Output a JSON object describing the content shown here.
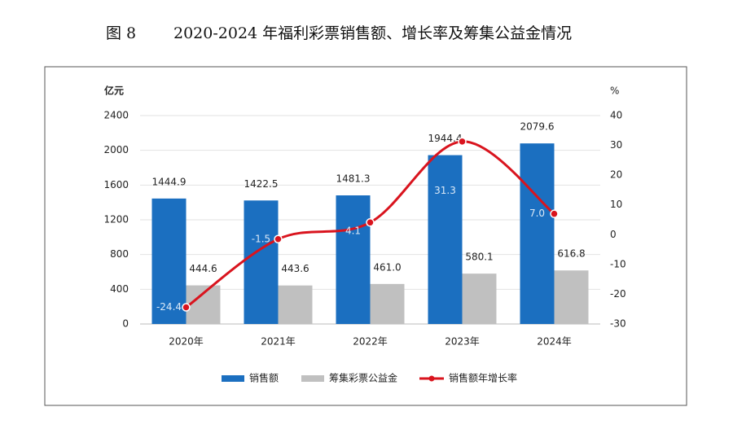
{
  "chart_data": {
    "type": "bar",
    "figure_label": "图 8",
    "title": "2020-2024 年福利彩票销售额、增长率及筹集公益金情况",
    "y_label": "亿元",
    "y2_label": "%",
    "categories": [
      "2020年",
      "2021年",
      "2022年",
      "2023年",
      "2024年"
    ],
    "series": [
      {
        "name": "销售额",
        "type": "bar",
        "color": "#1b6fc0",
        "values": [
          1444.9,
          1422.5,
          1481.3,
          1944.4,
          2079.6
        ],
        "value_labels": [
          "1444.9",
          "1422.5",
          "1481.3",
          "1944.4",
          "2079.6"
        ]
      },
      {
        "name": "筹集彩票公益金",
        "type": "bar",
        "color": "#c0c0c0",
        "values": [
          444.6,
          443.6,
          461.0,
          580.1,
          616.8
        ],
        "value_labels": [
          "444.6",
          "443.6",
          "461.0",
          "580.1",
          "616.8"
        ]
      },
      {
        "name": "销售额年增长率",
        "type": "line",
        "axis": "y2",
        "color": "#d9141e",
        "values": [
          -24.4,
          -1.5,
          4.1,
          31.3,
          7.0
        ],
        "value_labels": [
          "-24.4",
          "-1.5",
          "4.1",
          "31.3",
          "7.0"
        ]
      }
    ],
    "ylim": [
      0,
      2400
    ],
    "yticks": [
      0,
      400,
      800,
      1200,
      1600,
      2000,
      2400
    ],
    "y2lim": [
      -30,
      40
    ],
    "y2ticks": [
      -30,
      -20,
      -10,
      0,
      10,
      20,
      30,
      40
    ],
    "grid": true
  }
}
